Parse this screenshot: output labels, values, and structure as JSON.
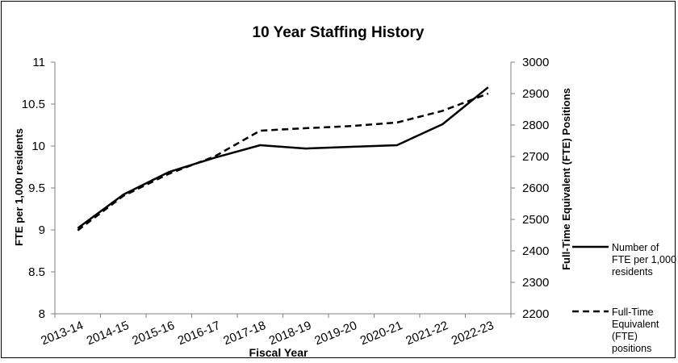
{
  "chart_data": {
    "type": "line",
    "title": "10 Year Staffing History",
    "xlabel": "Fiscal Year",
    "ylabel": "FTE per 1,000 residents",
    "y2label": "Full-Time Equivalent (FTE) Positions",
    "categories": [
      "2013-14",
      "2014-15",
      "2015-16",
      "2016-17",
      "2017-18",
      "2018-19",
      "2019-20",
      "2020-21",
      "2021-22",
      "2022-23"
    ],
    "ylim": [
      8,
      11
    ],
    "yticks": [
      "8",
      "8.5",
      "9",
      "9.5",
      "10",
      "10.5",
      "11"
    ],
    "y2lim": [
      2200,
      3000
    ],
    "y2ticks": [
      "2200",
      "2300",
      "2400",
      "2500",
      "2600",
      "2700",
      "2800",
      "2900",
      "3000"
    ],
    "grid": false,
    "legend_position": "right",
    "series": [
      {
        "name": "Number of FTE per 1,000 residents",
        "axis": "left",
        "style": "solid",
        "color": "#000000",
        "values": [
          9.02,
          9.42,
          9.69,
          9.86,
          10.01,
          9.97,
          9.99,
          10.01,
          10.26,
          10.7
        ]
      },
      {
        "name": "Full-Time Equivalent (FTE) positions",
        "axis": "right",
        "style": "dashed",
        "color": "#000000",
        "values": [
          2465,
          2575,
          2645,
          2700,
          2782,
          2790,
          2797,
          2808,
          2845,
          2900
        ]
      }
    ]
  },
  "legend": {
    "entries": [
      {
        "lines": [
          "Number of",
          "FTE per 1,000",
          "residents"
        ]
      },
      {
        "lines": [
          "Full-Time",
          "Equivalent",
          "(FTE)",
          "positions"
        ]
      }
    ]
  }
}
